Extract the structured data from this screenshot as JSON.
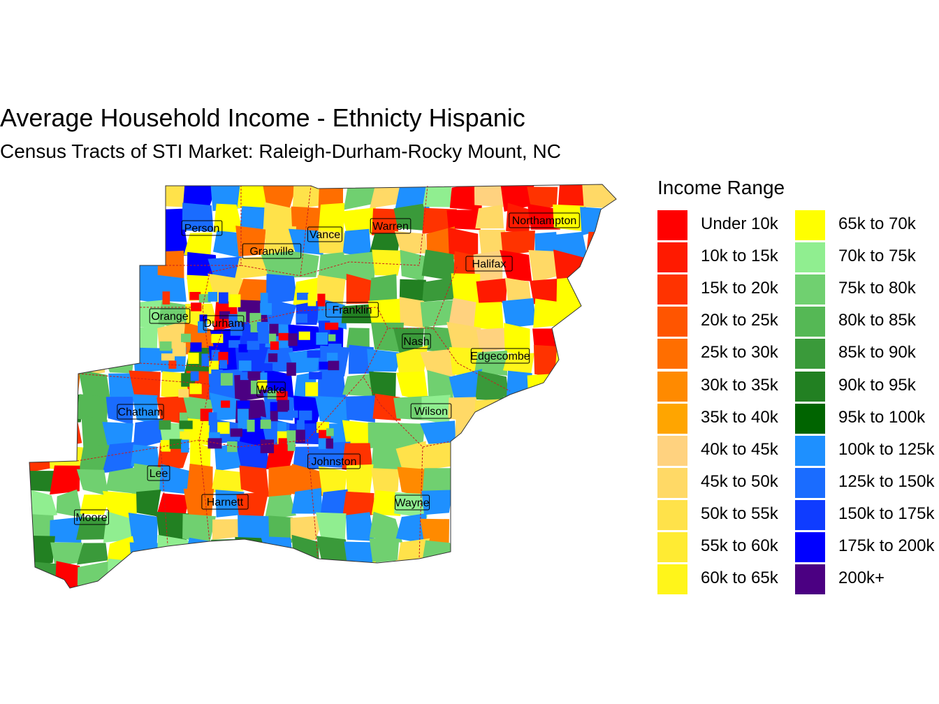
{
  "title": "Average Household Income - Ethnicty Hispanic",
  "subtitle": "Census Tracts of STI Market: Raleigh-Durham-Rocky Mount, NC",
  "legend": {
    "title": "Income Range",
    "items": [
      {
        "label": "Under 10k",
        "color": "#FF0000"
      },
      {
        "label": "10k to 15k",
        "color": "#FF1A00"
      },
      {
        "label": "15k to 20k",
        "color": "#FF3300"
      },
      {
        "label": "20k to 25k",
        "color": "#FF5500"
      },
      {
        "label": "25k to 30k",
        "color": "#FF6E00"
      },
      {
        "label": "30k to 35k",
        "color": "#FF8A00"
      },
      {
        "label": "35k to 40k",
        "color": "#FFA500"
      },
      {
        "label": "40k to 45k",
        "color": "#FFD27F"
      },
      {
        "label": "45k to 50k",
        "color": "#FFD966"
      },
      {
        "label": "50k to 55k",
        "color": "#FFE24A"
      },
      {
        "label": "55k to 60k",
        "color": "#FFEB33"
      },
      {
        "label": "60k to 65k",
        "color": "#FFF51A"
      },
      {
        "label": "65k to 70k",
        "color": "#FFFF00"
      },
      {
        "label": "70k to 75k",
        "color": "#90EE90"
      },
      {
        "label": "75k to 80k",
        "color": "#70D070"
      },
      {
        "label": "80k to 85k",
        "color": "#55B855"
      },
      {
        "label": "85k to 90k",
        "color": "#3A9A3A"
      },
      {
        "label": "90k to 95k",
        "color": "#228022"
      },
      {
        "label": "95k to 100k",
        "color": "#006400"
      },
      {
        "label": "100k to 125k",
        "color": "#1E90FF"
      },
      {
        "label": "125k to 150k",
        "color": "#1A6CFF"
      },
      {
        "label": "150k to 175k",
        "color": "#0F3CFF"
      },
      {
        "label": "175k to 200k",
        "color": "#0000FF"
      },
      {
        "label": "200k+",
        "color": "#4B0082"
      }
    ]
  },
  "counties": [
    "Person",
    "Granville",
    "Vance",
    "Warren",
    "Northampton",
    "Halifax",
    "Orange",
    "Durham",
    "Franklin",
    "Nash",
    "Edgecombe",
    "Wake",
    "Chatham",
    "Wilson",
    "Johnston",
    "Lee",
    "Harnett",
    "Wayne",
    "Moore"
  ]
}
